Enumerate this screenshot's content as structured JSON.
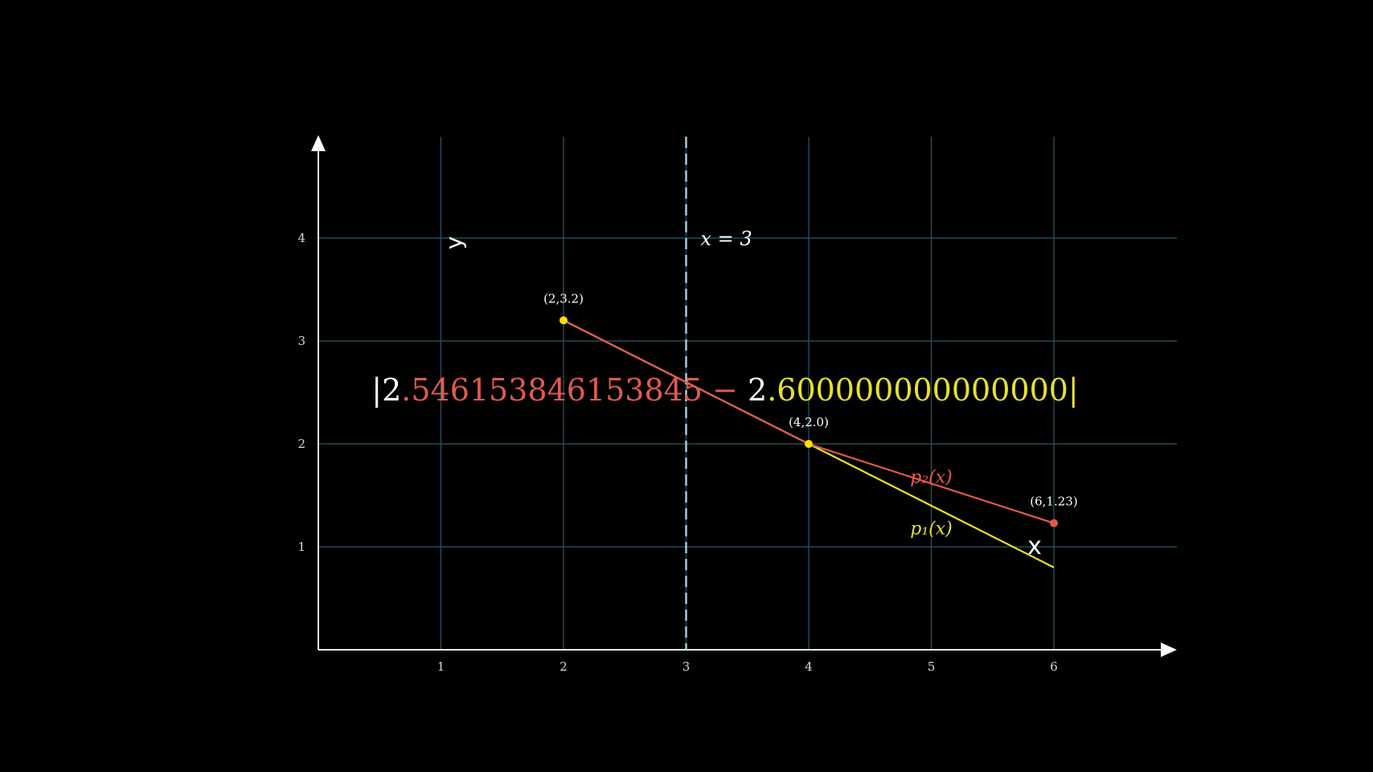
{
  "chart_data": {
    "type": "line",
    "xlabel": "x",
    "ylabel": "y",
    "xlim": [
      0,
      7
    ],
    "ylim": [
      0,
      5
    ],
    "x_ticks": [
      "1",
      "2",
      "3",
      "4",
      "5",
      "6"
    ],
    "y_ticks": [
      "1",
      "2",
      "3",
      "4"
    ],
    "grid": true,
    "vline": {
      "x": 3,
      "label": "x = 3"
    },
    "series": [
      {
        "name": "p₁(x)",
        "color": "#e6e22e",
        "x": [
          2,
          6
        ],
        "y": [
          3.2,
          0.8
        ]
      },
      {
        "name": "p₂(x)",
        "color": "#e05a4f",
        "x": [
          2,
          4,
          6
        ],
        "y": [
          3.2,
          2.0,
          1.23
        ]
      }
    ],
    "points": [
      {
        "x": 2,
        "y": 3.2,
        "label": "(2,3.2)",
        "color": "#ffe100"
      },
      {
        "x": 4,
        "y": 2.0,
        "label": "(4,2.0)",
        "color": "#ffe100"
      },
      {
        "x": 6,
        "y": 1.23,
        "label": "(6,1.23)",
        "color": "#e05a4f"
      }
    ],
    "expression": {
      "open": "|",
      "a_int": "2",
      "a_frac": ".546153846153845",
      "minus": " − ",
      "b_int": "2",
      "b_frac": ".600000000000000",
      "close": "|",
      "color_a": "#e05a4f",
      "color_b": "#e6e22e"
    }
  }
}
